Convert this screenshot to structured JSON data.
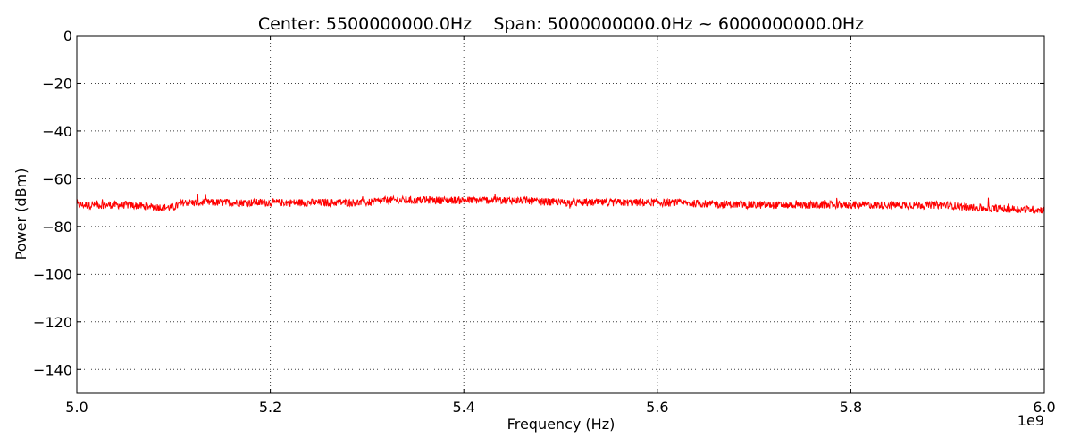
{
  "chart_data": {
    "type": "line",
    "title": "Center: 5500000000.0Hz    Span: 5000000000.0Hz ~ 6000000000.0Hz",
    "xlabel": "Frequency (Hz)",
    "ylabel": "Power (dBm)",
    "x_offset_text": "1e9",
    "xlim": [
      5.0,
      6.0
    ],
    "ylim": [
      -150,
      0
    ],
    "x_ticks": [
      5.0,
      5.2,
      5.4,
      5.6,
      5.8,
      6.0
    ],
    "x_tick_labels": [
      "5.0",
      "5.2",
      "5.4",
      "5.6",
      "5.8",
      "6.0"
    ],
    "y_ticks": [
      0,
      -20,
      -40,
      -60,
      -80,
      -100,
      -120,
      -140
    ],
    "y_tick_labels": [
      "0",
      "−20",
      "−40",
      "−60",
      "−80",
      "−100",
      "−120",
      "−140"
    ],
    "grid": true,
    "series": [
      {
        "color": "#ff0000",
        "x": [
          5.0,
          5.05,
          5.09,
          5.1,
          5.11,
          5.15,
          5.2,
          5.25,
          5.3,
          5.32,
          5.35,
          5.4,
          5.45,
          5.5,
          5.55,
          5.6,
          5.65,
          5.7,
          5.75,
          5.8,
          5.85,
          5.9,
          5.92,
          5.95,
          6.0
        ],
        "y": [
          -71,
          -71,
          -72,
          -72,
          -70,
          -70,
          -70,
          -70,
          -70,
          -69,
          -69,
          -69,
          -69,
          -70,
          -70,
          -70,
          -70.5,
          -71,
          -71,
          -71,
          -71,
          -71,
          -72,
          -72.5,
          -73
        ]
      }
    ]
  }
}
